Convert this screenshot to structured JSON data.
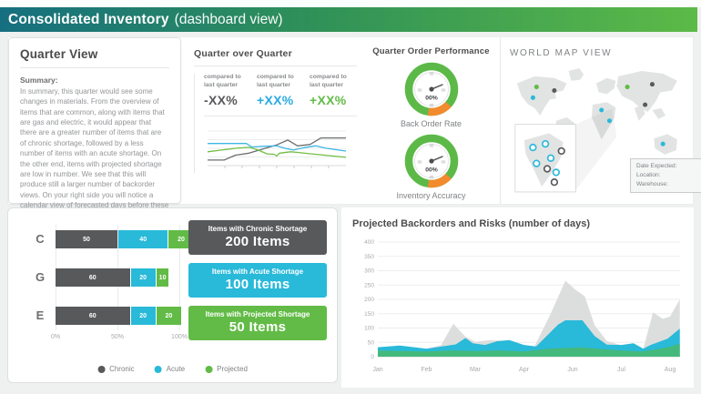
{
  "header": {
    "title_bold": "Consolidated Inventory",
    "title_light": "(dashboard view)"
  },
  "quarter_view": {
    "title": "Quarter View",
    "summary_label": "Summary:",
    "summary_text": "In summary, this quarter would see some changes in materials. From the overview of items that are common, along with items that are gas and electric, it would appear that there are a greater number of items that are of chronic shortage, followed by a less number of items with an acute shortage. On the other end, items with projected shortage are low in number. We see that this will produce still a larger number of backorder views. On your right side you will notice a calendar view of forecasted days before these numbers drop."
  },
  "quarter_over_quarter": {
    "title": "Quarter over Quarter",
    "comparisons": [
      {
        "label": "compared to last quarter",
        "value": "-XX%",
        "color": "#58595b"
      },
      {
        "label": "compared to last quarter",
        "value": "+XX%",
        "color": "#29abe2"
      },
      {
        "label": "compared to last quarter",
        "value": "+XX%",
        "color": "#62bb46"
      }
    ],
    "sparkline": {
      "type": "line",
      "x_range": [
        0,
        10
      ],
      "y_range": [
        0,
        100
      ],
      "series": [
        {
          "name": "gray",
          "color": "#6d6e71",
          "points": [
            [
              0,
              16
            ],
            [
              1.2,
              16
            ],
            [
              2,
              30
            ],
            [
              3,
              36
            ],
            [
              4,
              48
            ],
            [
              5,
              60
            ],
            [
              5.8,
              74
            ],
            [
              6.5,
              57
            ],
            [
              7.4,
              61
            ],
            [
              8.2,
              80
            ],
            [
              10,
              80
            ]
          ]
        },
        {
          "name": "cyan",
          "color": "#3db7e4",
          "points": [
            [
              0,
              64
            ],
            [
              2.8,
              64
            ],
            [
              3.2,
              54
            ],
            [
              4.2,
              56
            ],
            [
              5,
              57
            ],
            [
              5.6,
              50
            ],
            [
              6.2,
              45
            ],
            [
              7,
              52
            ],
            [
              7.8,
              57
            ],
            [
              8.6,
              50
            ],
            [
              10,
              42
            ]
          ]
        },
        {
          "name": "green",
          "color": "#72bf44",
          "points": [
            [
              0,
              40
            ],
            [
              1,
              45
            ],
            [
              2,
              50
            ],
            [
              3,
              53
            ],
            [
              3.6,
              46
            ],
            [
              4.3,
              34
            ],
            [
              4.8,
              33
            ],
            [
              5,
              28
            ],
            [
              5.2,
              36
            ],
            [
              6,
              40
            ],
            [
              6.6,
              38
            ],
            [
              7.5,
              34
            ],
            [
              8.5,
              30
            ],
            [
              10,
              24
            ]
          ]
        }
      ]
    }
  },
  "order_performance": {
    "title": "Quarter Order Performance",
    "ring_color": "#5cb947",
    "accent_color": "#f28b2e",
    "gauges": [
      {
        "label": "Back Order Rate",
        "value": "00%",
        "ticks": [
          "00",
          "00",
          "00",
          "00"
        ]
      },
      {
        "label": "Inventory Accuracy",
        "value": "00%",
        "ticks": [
          "00",
          "00",
          "00",
          "00"
        ]
      }
    ]
  },
  "world_map": {
    "title": "WORLD MAP VIEW",
    "tooltip": {
      "lines": [
        "Date Expected:",
        "Location:",
        "Warehouse:"
      ]
    },
    "markers": [
      {
        "x": 30,
        "y": 24,
        "color": "#62bb46"
      },
      {
        "x": 50,
        "y": 28,
        "color": "#58595b"
      },
      {
        "x": 26,
        "y": 36,
        "color": "#29b9d9"
      },
      {
        "x": 132,
        "y": 24,
        "color": "#62bb46"
      },
      {
        "x": 160,
        "y": 21,
        "color": "#58595b"
      },
      {
        "x": 152,
        "y": 44,
        "color": "#58595b"
      },
      {
        "x": 103,
        "y": 50,
        "color": "#29b9d9"
      },
      {
        "x": 112,
        "y": 62,
        "color": "#29b9d9"
      },
      {
        "x": 172,
        "y": 88,
        "color": "#29b9d9"
      }
    ],
    "inset_markers": [
      {
        "x": 26,
        "y": 92,
        "color": "#29b9d9"
      },
      {
        "x": 40,
        "y": 88,
        "color": "#29b9d9"
      },
      {
        "x": 46,
        "y": 104,
        "color": "#29b9d9"
      },
      {
        "x": 30,
        "y": 110,
        "color": "#29b9d9"
      },
      {
        "x": 52,
        "y": 120,
        "color": "#29b9d9"
      },
      {
        "x": 58,
        "y": 96,
        "color": "#58595b"
      },
      {
        "x": 42,
        "y": 116,
        "color": "#58595b"
      },
      {
        "x": 50,
        "y": 131,
        "color": "#58595b"
      }
    ]
  },
  "shortage_panel": {
    "chart_data": {
      "type": "bar",
      "orientation": "horizontal",
      "categories": [
        "C",
        "G",
        "E"
      ],
      "series": [
        {
          "name": "Chronic",
          "values": [
            50,
            60,
            60
          ]
        },
        {
          "name": "Acute",
          "values": [
            40,
            20,
            20
          ]
        },
        {
          "name": "Projected",
          "values": [
            20,
            10,
            20
          ]
        }
      ],
      "xlim_labels": [
        "0%",
        "50%",
        "100%"
      ]
    },
    "rows": [
      {
        "label": "C",
        "segments": [
          {
            "series": "chronic",
            "value": 50
          },
          {
            "series": "acute",
            "value": 40
          },
          {
            "series": "projected",
            "value": 20
          }
        ]
      },
      {
        "label": "G",
        "segments": [
          {
            "series": "chronic",
            "value": 60
          },
          {
            "series": "acute",
            "value": 20
          },
          {
            "series": "projected",
            "value": 10
          }
        ]
      },
      {
        "label": "E",
        "segments": [
          {
            "series": "chronic",
            "value": 60
          },
          {
            "series": "acute",
            "value": 20
          },
          {
            "series": "projected",
            "value": 20
          }
        ]
      }
    ],
    "colors": {
      "chronic": "#58595b",
      "acute": "#29b9d9",
      "projected": "#62bb46"
    },
    "x_ticks": [
      "0%",
      "50%",
      "100%"
    ],
    "legend": [
      {
        "series": "chronic",
        "label": "Chronic"
      },
      {
        "series": "acute",
        "label": "Acute"
      },
      {
        "series": "projected",
        "label": "Projected"
      }
    ],
    "callouts": [
      {
        "series": "chronic",
        "line1": "Items with Chronic Shortage",
        "line2": "200 Items",
        "color": "#58595b"
      },
      {
        "series": "acute",
        "line1": "Items with Acute Shortage",
        "line2": "100 Items",
        "color": "#29b9d9"
      },
      {
        "series": "projected",
        "line1": "Items with Projected Shortage",
        "line2": "50 Items",
        "color": "#62bb46"
      }
    ]
  },
  "backorders": {
    "title": "Projected Backorders and Risks (number of days)",
    "chart_data": {
      "type": "area",
      "x_labels": [
        "Jan",
        "Feb",
        "Mar",
        "Apr",
        "Jun",
        "Jul",
        "Aug"
      ],
      "y_ticks": [
        0,
        50,
        100,
        150,
        200,
        250,
        300,
        350,
        400
      ],
      "ylim": [
        0,
        400
      ],
      "series": [
        {
          "name": "risk",
          "color": "#dcdedd",
          "points": [
            [
              0,
              20
            ],
            [
              0.5,
              25
            ],
            [
              1,
              28
            ],
            [
              1.3,
              40
            ],
            [
              1.55,
              115
            ],
            [
              1.8,
              70
            ],
            [
              2,
              52
            ],
            [
              2.3,
              58
            ],
            [
              2.7,
              55
            ],
            [
              3,
              36
            ],
            [
              3.2,
              30
            ],
            [
              3.55,
              150
            ],
            [
              3.85,
              265
            ],
            [
              4.05,
              235
            ],
            [
              4.25,
              210
            ],
            [
              4.45,
              110
            ],
            [
              4.7,
              55
            ],
            [
              5,
              40
            ],
            [
              5.2,
              30
            ],
            [
              5.45,
              28
            ],
            [
              5.65,
              155
            ],
            [
              5.85,
              132
            ],
            [
              6,
              140
            ],
            [
              6.2,
              200
            ]
          ]
        },
        {
          "name": "backorder",
          "color": "#29b9d9",
          "points": [
            [
              0,
              33
            ],
            [
              0.45,
              39
            ],
            [
              1,
              28
            ],
            [
              1.6,
              43
            ],
            [
              1.8,
              65
            ],
            [
              1.95,
              47
            ],
            [
              2.2,
              41
            ],
            [
              2.45,
              54
            ],
            [
              2.7,
              58
            ],
            [
              3,
              41
            ],
            [
              3.25,
              36
            ],
            [
              3.7,
              112
            ],
            [
              3.85,
              127
            ],
            [
              4.2,
              127
            ],
            [
              4.45,
              72
            ],
            [
              4.7,
              42
            ],
            [
              5,
              41
            ],
            [
              5.25,
              47
            ],
            [
              5.45,
              28
            ],
            [
              5.6,
              41
            ],
            [
              5.95,
              63
            ],
            [
              6.2,
              98
            ]
          ]
        },
        {
          "name": "projected",
          "color": "#45b97c",
          "points": [
            [
              0,
              22
            ],
            [
              0.5,
              20
            ],
            [
              1,
              18
            ],
            [
              1.5,
              22
            ],
            [
              2,
              20
            ],
            [
              2.5,
              22
            ],
            [
              3,
              18
            ],
            [
              3.5,
              28
            ],
            [
              3.8,
              30
            ],
            [
              4.2,
              32
            ],
            [
              4.5,
              28
            ],
            [
              5,
              22
            ],
            [
              5.4,
              18
            ],
            [
              5.7,
              25
            ],
            [
              6,
              35
            ],
            [
              6.2,
              46
            ]
          ]
        }
      ]
    }
  }
}
